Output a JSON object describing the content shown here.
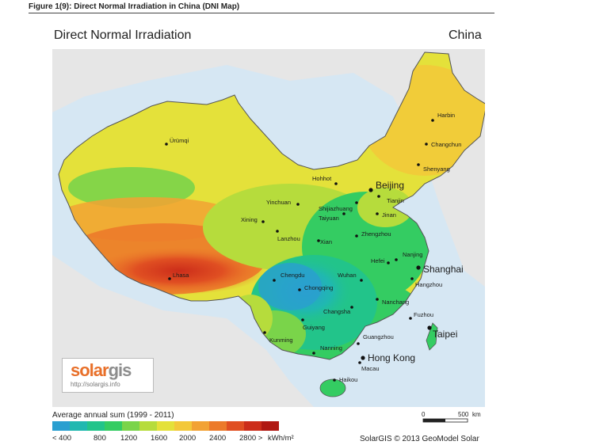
{
  "figure_title": "Figure 1(9): Direct Normal Irradiation in China (DNI Map)",
  "map_title": "Direct Normal Irradiation",
  "country": "China",
  "cities": [
    {
      "name": "Harbin",
      "major": false
    },
    {
      "name": "Changchun",
      "major": false
    },
    {
      "name": "Shenyang",
      "major": false
    },
    {
      "name": "Ürümqi",
      "major": false
    },
    {
      "name": "Hohhot",
      "major": false
    },
    {
      "name": "Beijing",
      "major": true
    },
    {
      "name": "Tianjin",
      "major": false
    },
    {
      "name": "Yinchuan",
      "major": false
    },
    {
      "name": "Shijiazhuang",
      "major": false
    },
    {
      "name": "Taiyuan",
      "major": false
    },
    {
      "name": "Jinan",
      "major": false
    },
    {
      "name": "Xining",
      "major": false
    },
    {
      "name": "Lanzhou",
      "major": false
    },
    {
      "name": "Zhengzhou",
      "major": false
    },
    {
      "name": "Xian",
      "major": false
    },
    {
      "name": "Nanjing",
      "major": false
    },
    {
      "name": "Hefei",
      "major": false
    },
    {
      "name": "Shanghai",
      "major": true
    },
    {
      "name": "Lhasa",
      "major": false
    },
    {
      "name": "Chengdu",
      "major": false
    },
    {
      "name": "Wuhan",
      "major": false
    },
    {
      "name": "Hangzhou",
      "major": false
    },
    {
      "name": "Chongqing",
      "major": false
    },
    {
      "name": "Nanchang",
      "major": false
    },
    {
      "name": "Changsha",
      "major": false
    },
    {
      "name": "Fuzhou",
      "major": false
    },
    {
      "name": "Guiyang",
      "major": false
    },
    {
      "name": "Taipei",
      "major": true
    },
    {
      "name": "Kunming",
      "major": false
    },
    {
      "name": "Guangzhou",
      "major": false
    },
    {
      "name": "Nanning",
      "major": false
    },
    {
      "name": "Hong Kong",
      "major": true
    },
    {
      "name": "Macau",
      "major": false
    },
    {
      "name": "Haikou",
      "major": false
    }
  ],
  "legend": {
    "title": "Average annual sum (1999 - 2011)",
    "unit": "kWh/m²",
    "labels": [
      "< 400",
      "800",
      "1200",
      "1600",
      "2000",
      "2400",
      "2800 >"
    ],
    "colors": [
      "#2a9fd0",
      "#20b8b0",
      "#22c48a",
      "#34cc62",
      "#7ad44a",
      "#b6dc3c",
      "#e4e13a",
      "#f3c83a",
      "#f2a234",
      "#ec7a2a",
      "#e04f22",
      "#cc2d1a",
      "#b01812"
    ]
  },
  "scale": {
    "start": "0",
    "end": "500",
    "unit": "km"
  },
  "credit": "SolarGIS © 2013 GeoModel Solar",
  "logo": {
    "text_main": "solar",
    "text_accent": "gis",
    "url": "http://solargis.info"
  },
  "map_colors": {
    "sea": "#d6e7f3",
    "neighbor_land": "#e6e6e6",
    "border": "#555555"
  }
}
